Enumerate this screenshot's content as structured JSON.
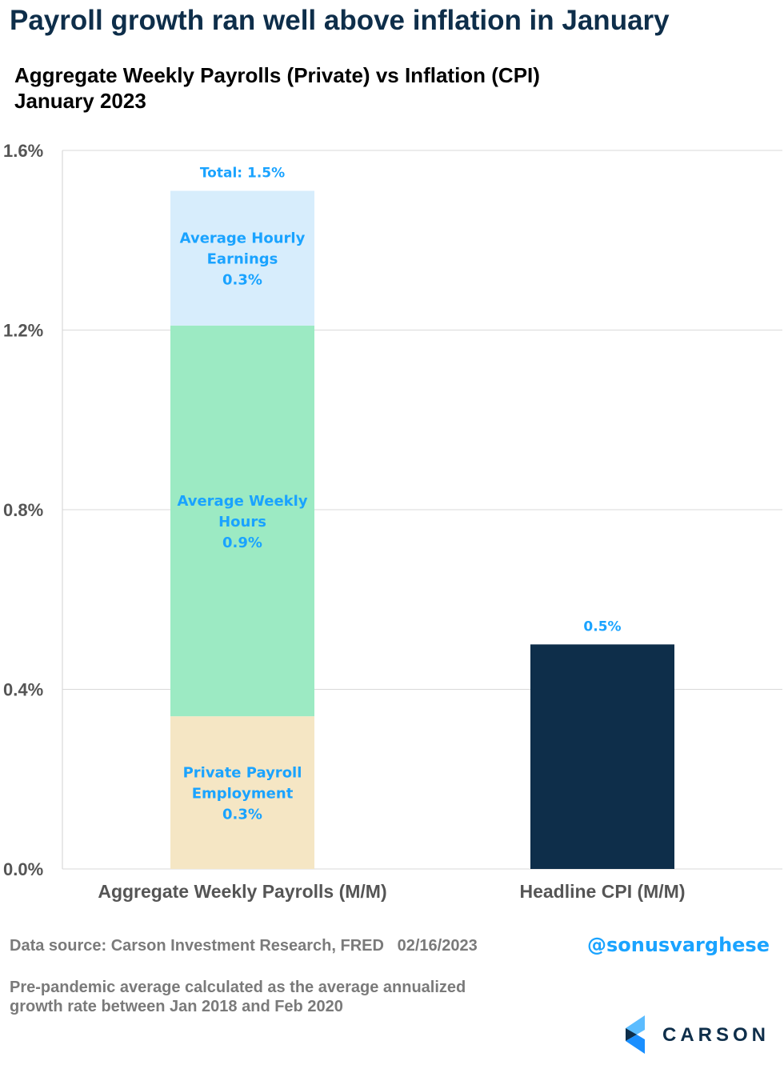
{
  "headline": "Payroll growth ran well above inflation in January",
  "subtitle_line1": "Aggregate Weekly Payrolls (Private) vs Inflation (CPI)",
  "subtitle_line2": "January 2023",
  "footer": {
    "source": "Data source: Carson Investment Research, FRED   02/16/2023",
    "handle": "@sonusvarghese",
    "note": "Pre-pandemic average calculated as the average annualized growth rate between Jan 2018 and Feb 2020",
    "logo_text": "CARSON"
  },
  "chart_data": {
    "type": "bar",
    "stacked": true,
    "categories": [
      "Aggregate Weekly Payrolls (M/M)",
      "Headline CPI (M/M)"
    ],
    "ylim": [
      0,
      1.6
    ],
    "yticks": [
      "0.0%",
      "0.4%",
      "0.8%",
      "1.2%",
      "1.6%"
    ],
    "ytick_values": [
      0,
      0.4,
      0.8,
      1.2,
      1.6
    ],
    "grid": true,
    "segments": [
      {
        "category": 0,
        "name": "Private Payroll Employment",
        "value": 0.34,
        "label": [
          "Private Payroll",
          "Employment",
          "0.3%"
        ],
        "color": "#f5e6c4"
      },
      {
        "category": 0,
        "name": "Average Weekly Hours",
        "value": 0.87,
        "label": [
          "Average Weekly",
          "Hours",
          "0.9%"
        ],
        "color": "#9ceac3"
      },
      {
        "category": 0,
        "name": "Average Hourly Earnings",
        "value": 0.3,
        "label": [
          "Average Hourly",
          "Earnings",
          "0.3%"
        ],
        "color": "#d7edfc"
      },
      {
        "category": 1,
        "name": "Headline CPI",
        "value": 0.5,
        "label": [],
        "color": "#0e2e4a"
      }
    ],
    "top_labels": [
      "Total: 1.5%",
      "0.5%"
    ],
    "label_color": "#1aa3ff"
  }
}
